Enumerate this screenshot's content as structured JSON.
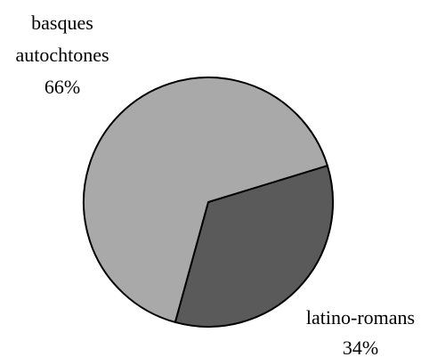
{
  "chart_data": {
    "type": "pie",
    "title": "",
    "slices": [
      {
        "label": "basques autochtones",
        "label_lines": [
          "basques",
          "autochtones"
        ],
        "value": 66,
        "display": "66%",
        "color": "#a9a9a9"
      },
      {
        "label": "latino-romans",
        "label_lines": [
          "latino-romans"
        ],
        "value": 34,
        "display": "34%",
        "color": "#5a5a5a"
      }
    ],
    "legend": "none",
    "label_placement": "outside"
  }
}
